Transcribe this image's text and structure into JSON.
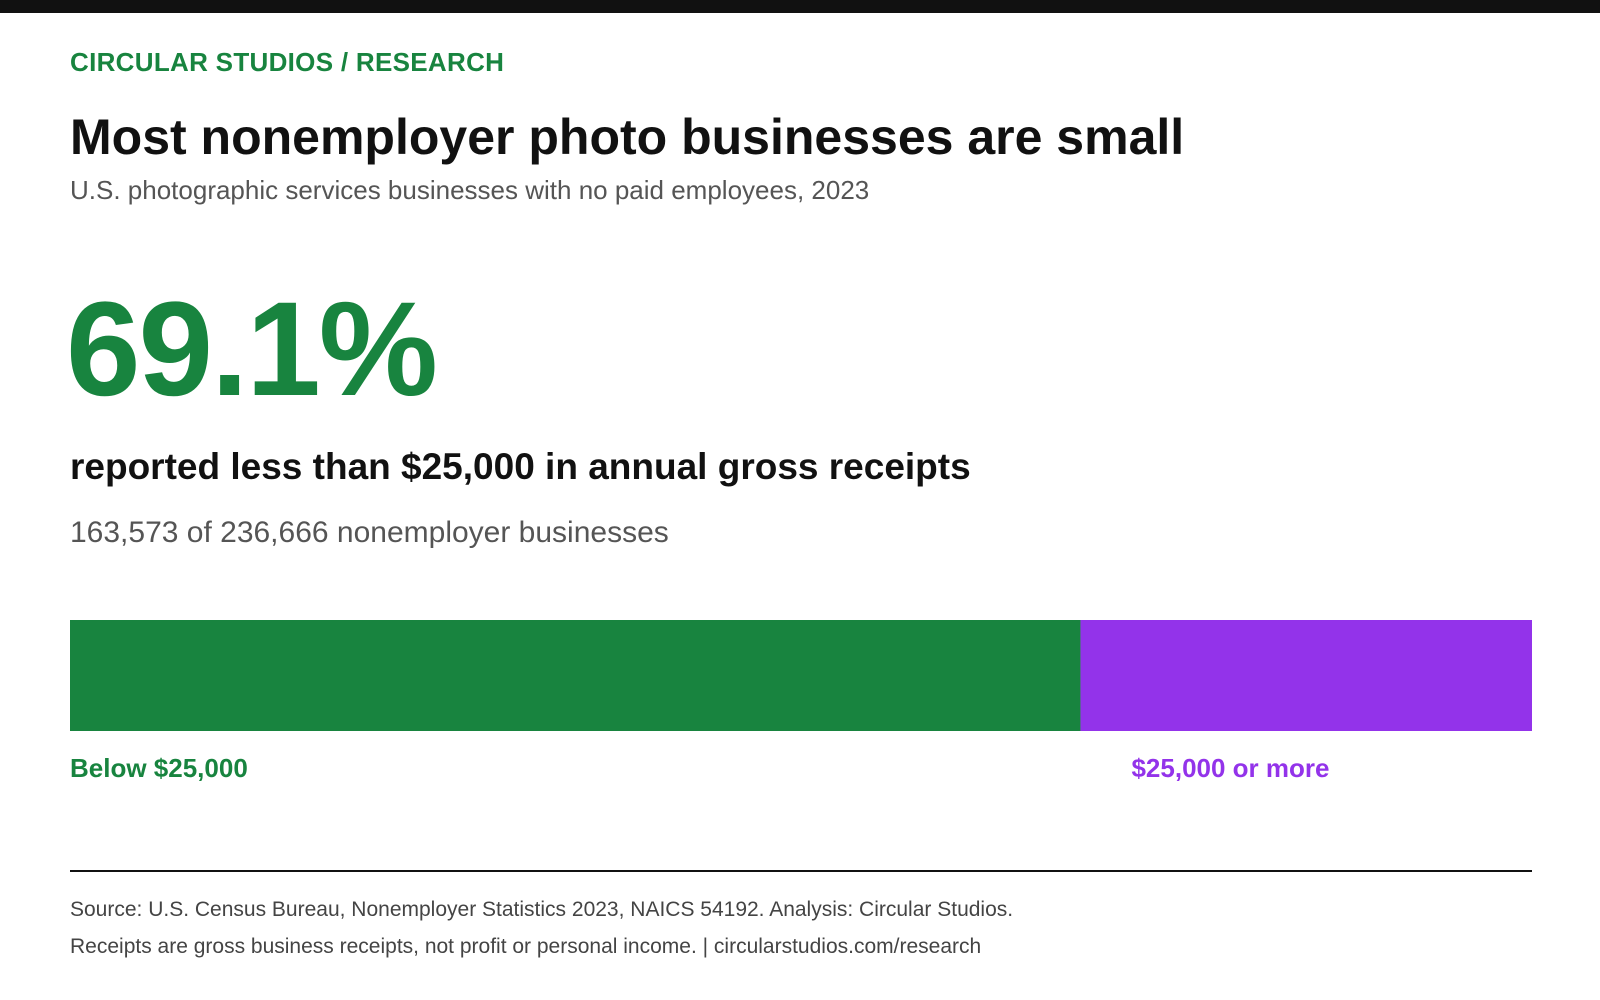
{
  "header": {
    "eyebrow": "CIRCULAR STUDIOS / RESEARCH",
    "title": "Most nonemployer photo businesses are small",
    "subtitle": "U.S. photographic services businesses with no paid employees, 2023"
  },
  "highlight": {
    "percent_label": "69.1%",
    "statement": "reported less than $25,000 in annual gross receipts",
    "detail": "163,573 of 236,666 nonemployer businesses"
  },
  "colors": {
    "accent_green": "#18843f",
    "accent_purple": "#9333ea",
    "text_dark": "#111111",
    "text_muted": "#555555",
    "rule": "#111111"
  },
  "chart_data": {
    "type": "bar",
    "stacked": true,
    "orientation": "horizontal",
    "total": 236666,
    "series": [
      {
        "name": "Below $25,000",
        "value": 163573,
        "percent": 69.1,
        "color": "#18843f"
      },
      {
        "name": "$25,000 or more",
        "value": 73093,
        "percent": 30.9,
        "color": "#9333ea"
      }
    ],
    "xlim": [
      0,
      236666
    ]
  },
  "footer": {
    "source": "Source: U.S. Census Bureau, Nonemployer Statistics 2023, NAICS 54192. Analysis: Circular Studios.",
    "note": "Receipts are gross business receipts, not profit or personal income. | circularstudios.com/research"
  }
}
